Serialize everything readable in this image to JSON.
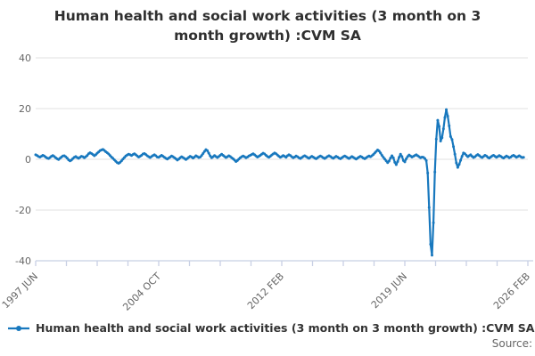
{
  "title": "Human health and social work activities (3 month on 3 month growth) :CVM SA",
  "legend": {
    "label": "Human health and social work activities (3 month on 3 month growth) :CVM SA"
  },
  "source_label": "Source:",
  "colors": {
    "series": "#1878be",
    "grid": "#e0e0e0",
    "axis": "#c8d0e4",
    "tick_text": "#666666",
    "title_text": "#2f2f2f"
  },
  "chart_data": {
    "type": "line",
    "title": "Human health and social work activities (3 month on 3 month growth) :CVM SA",
    "xlabel": "",
    "ylabel": "",
    "ylim": [
      -40,
      40
    ],
    "y_ticks": [
      40,
      20,
      0,
      -20,
      -40
    ],
    "grid": "horizontal",
    "legend_position": "bottom-left",
    "x_start_month": "1997-06",
    "x_axis_total_months": 344,
    "x_tick_count": 17,
    "x_labeled_tick_indices": [
      0,
      4,
      8,
      12,
      16
    ],
    "x_tick_labels": [
      "1997 JUN",
      "2004 OCT",
      "2012 FEB",
      "2019 JUN",
      "2026 FEB"
    ],
    "series": [
      {
        "name": "Human health and social work activities (3 month on 3 month growth) :CVM SA",
        "frequency": "monthly",
        "first_point": "1997-06",
        "values": [
          1.8,
          1.5,
          1.1,
          0.9,
          1.2,
          1.6,
          1.3,
          0.9,
          0.5,
          0.3,
          0.7,
          1.2,
          1.5,
          1.1,
          0.6,
          0.2,
          -0.1,
          0.4,
          0.9,
          1.3,
          1.4,
          1.0,
          0.5,
          -0.2,
          -0.6,
          -0.3,
          0.3,
          0.8,
          1.1,
          0.7,
          0.4,
          0.8,
          1.2,
          1.0,
          0.6,
          1.0,
          1.5,
          2.2,
          2.6,
          2.3,
          1.9,
          1.4,
          1.8,
          2.4,
          2.9,
          3.4,
          3.7,
          3.9,
          3.5,
          3.0,
          2.6,
          2.1,
          1.5,
          0.9,
          0.4,
          -0.2,
          -0.8,
          -1.3,
          -1.6,
          -1.2,
          -0.6,
          0.1,
          0.7,
          1.3,
          1.7,
          2.0,
          1.8,
          1.5,
          1.9,
          2.2,
          1.8,
          1.3,
          0.9,
          1.2,
          1.6,
          2.1,
          2.3,
          1.9,
          1.4,
          1.0,
          0.7,
          1.1,
          1.5,
          1.8,
          1.4,
          0.9,
          0.8,
          1.2,
          1.6,
          1.2,
          0.8,
          0.4,
          0.1,
          0.5,
          0.9,
          1.3,
          1.0,
          0.6,
          0.2,
          -0.3,
          0.1,
          0.6,
          1.0,
          0.7,
          0.3,
          -0.1,
          0.3,
          0.8,
          1.2,
          0.9,
          0.5,
          0.9,
          1.4,
          1.1,
          0.7,
          0.9,
          1.5,
          2.3,
          3.1,
          3.8,
          3.4,
          2.4,
          1.3,
          0.6,
          1.0,
          1.5,
          1.1,
          0.7,
          1.1,
          1.6,
          2.0,
          1.6,
          1.1,
          0.7,
          1.0,
          1.4,
          1.1,
          0.6,
          0.2,
          -0.3,
          -0.9,
          -0.5,
          0.1,
          0.6,
          1.0,
          1.3,
          1.0,
          0.6,
          0.9,
          1.3,
          1.6,
          1.9,
          2.2,
          1.8,
          1.3,
          0.9,
          1.2,
          1.6,
          2.0,
          2.4,
          2.1,
          1.6,
          1.1,
          0.8,
          1.2,
          1.7,
          2.1,
          2.5,
          2.2,
          1.7,
          1.2,
          0.8,
          1.1,
          1.5,
          1.2,
          0.8,
          1.4,
          1.8,
          1.5,
          1.0,
          0.6,
          0.9,
          1.3,
          1.0,
          0.6,
          0.3,
          0.7,
          1.1,
          1.4,
          1.1,
          0.7,
          0.4,
          0.8,
          1.2,
          0.9,
          0.5,
          0.2,
          0.6,
          1.0,
          1.3,
          1.0,
          0.6,
          0.3,
          0.7,
          1.1,
          1.4,
          1.1,
          0.7,
          0.4,
          0.8,
          1.2,
          0.9,
          0.5,
          0.2,
          0.6,
          1.0,
          1.3,
          1.0,
          0.6,
          0.3,
          0.7,
          1.1,
          0.8,
          0.4,
          0.1,
          0.5,
          0.9,
          1.2,
          0.9,
          0.5,
          0.2,
          0.6,
          1.0,
          1.3,
          1.0,
          1.4,
          1.9,
          2.5,
          3.1,
          3.7,
          3.3,
          2.5,
          1.6,
          0.8,
          0.1,
          -0.6,
          -1.3,
          -0.7,
          0.5,
          1.4,
          0.6,
          -1.2,
          -2.1,
          -0.9,
          0.8,
          2.0,
          1.1,
          -0.5,
          -1.0,
          0.2,
          1.1,
          1.7,
          1.3,
          0.9,
          1.2,
          1.5,
          1.8,
          1.4,
          1.0,
          0.6,
          0.9,
          0.8,
          0.3,
          -0.5,
          -5.4,
          -19.0,
          -33.5,
          -37.8,
          -25.0,
          -5.0,
          8.0,
          15.4,
          13.0,
          7.2,
          8.5,
          12.0,
          16.5,
          19.6,
          17.0,
          13.2,
          9.0,
          7.8,
          5.0,
          2.0,
          -1.4,
          -3.2,
          -2.0,
          -0.4,
          1.2,
          2.5,
          2.2,
          1.6,
          1.0,
          1.4,
          1.8,
          1.2,
          0.7,
          1.0,
          1.5,
          1.9,
          1.5,
          1.0,
          0.7,
          1.1,
          1.6,
          1.3,
          0.8,
          0.5,
          0.9,
          1.3,
          1.6,
          1.2,
          0.8,
          1.1,
          1.5,
          1.2,
          0.8,
          0.5,
          0.9,
          1.3,
          1.0,
          0.6,
          0.9,
          1.3,
          1.6,
          1.2,
          0.8,
          1.1,
          1.4,
          1.0,
          0.7,
          0.8
        ]
      }
    ]
  }
}
